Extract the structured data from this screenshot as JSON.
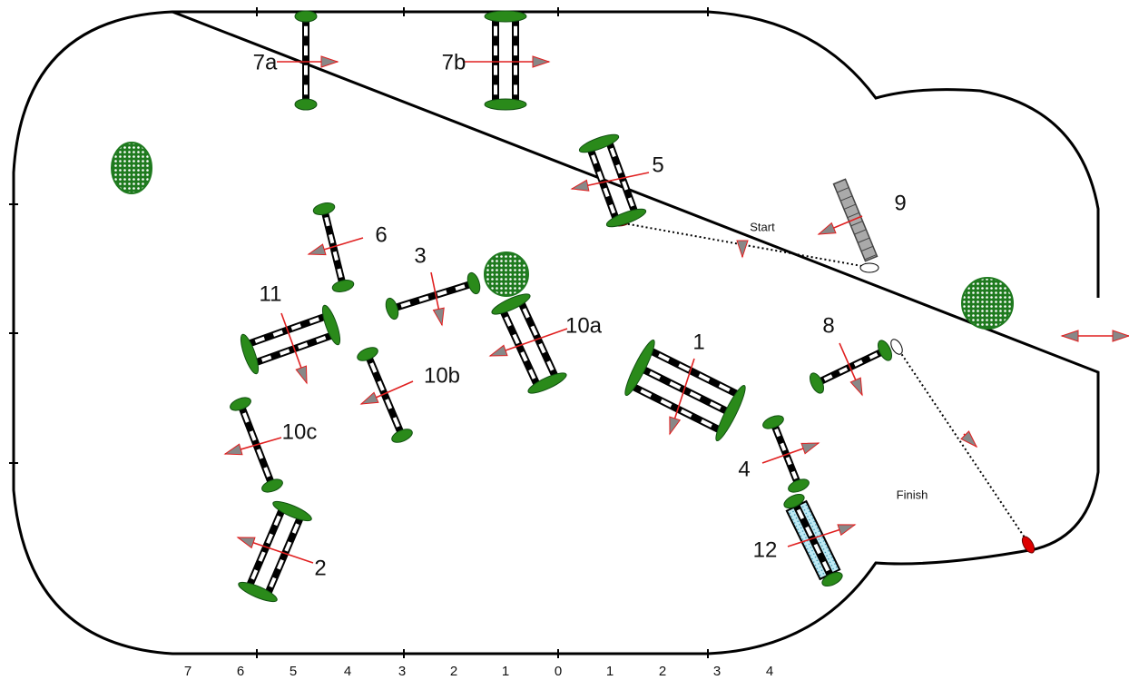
{
  "fences": [
    {
      "label": "7a"
    },
    {
      "label": "7b"
    },
    {
      "label": "5"
    },
    {
      "label": "9"
    },
    {
      "label": "6"
    },
    {
      "label": "3"
    },
    {
      "label": "11"
    },
    {
      "label": "10a"
    },
    {
      "label": "10b"
    },
    {
      "label": "10c"
    },
    {
      "label": "2"
    },
    {
      "label": "1"
    },
    {
      "label": "8"
    },
    {
      "label": "4"
    },
    {
      "label": "12"
    }
  ],
  "start": "Start",
  "finish": "Finish",
  "scale": [
    7,
    6,
    5,
    4,
    3,
    2,
    1,
    0,
    1,
    2,
    3,
    4
  ]
}
